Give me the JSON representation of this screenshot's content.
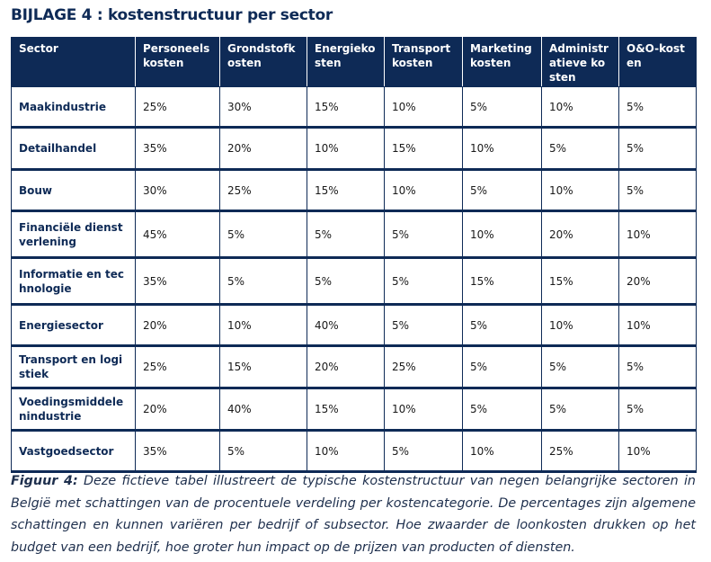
{
  "title": "BIJLAGE 4 : kostenstructuur per sector",
  "table": {
    "header": [
      "Sector",
      "Personeelskosten",
      "Grondstofkosten",
      "Energiekosten",
      "Transportkosten",
      "Marketingkosten",
      "Administratieve kosten",
      "O&O-kosten"
    ],
    "rows": [
      [
        "Maakindustrie",
        "25%",
        "30%",
        "15%",
        "10%",
        "5%",
        "10%",
        "5%"
      ],
      [
        "Detailhandel",
        "35%",
        "20%",
        "10%",
        "15%",
        "10%",
        "5%",
        "5%"
      ],
      [
        "Bouw",
        "30%",
        "25%",
        "15%",
        "10%",
        "5%",
        "10%",
        "5%"
      ],
      [
        "Financiële dienstverlening",
        "45%",
        "5%",
        "5%",
        "5%",
        "10%",
        "20%",
        "10%"
      ],
      [
        "Informatie en technologie",
        "35%",
        "5%",
        "5%",
        "5%",
        "15%",
        "15%",
        "20%"
      ],
      [
        "Energiesector",
        "20%",
        "10%",
        "40%",
        "5%",
        "5%",
        "10%",
        "10%"
      ],
      [
        "Transport en logistiek",
        "25%",
        "15%",
        "20%",
        "25%",
        "5%",
        "5%",
        "5%"
      ],
      [
        "Voedingsmiddelenindustrie",
        "20%",
        "40%",
        "15%",
        "10%",
        "5%",
        "5%",
        "5%"
      ],
      [
        "Vastgoedsector",
        "35%",
        "5%",
        "10%",
        "5%",
        "10%",
        "25%",
        "10%"
      ]
    ]
  },
  "caption": {
    "label": "Figuur 4:",
    "text": "Deze fictieve tabel illustreert de typische kostenstructuur van negen belangrijke sectoren in België met schattingen van de procentuele verdeling per kostencategorie. De percentages zijn algemene schattingen en kunnen variëren per bedrijf of subsector. Hoe zwaarder de loonkosten drukken op het budget van een bedrijf, hoe groter hun impact op de prijzen van producten of diensten."
  }
}
